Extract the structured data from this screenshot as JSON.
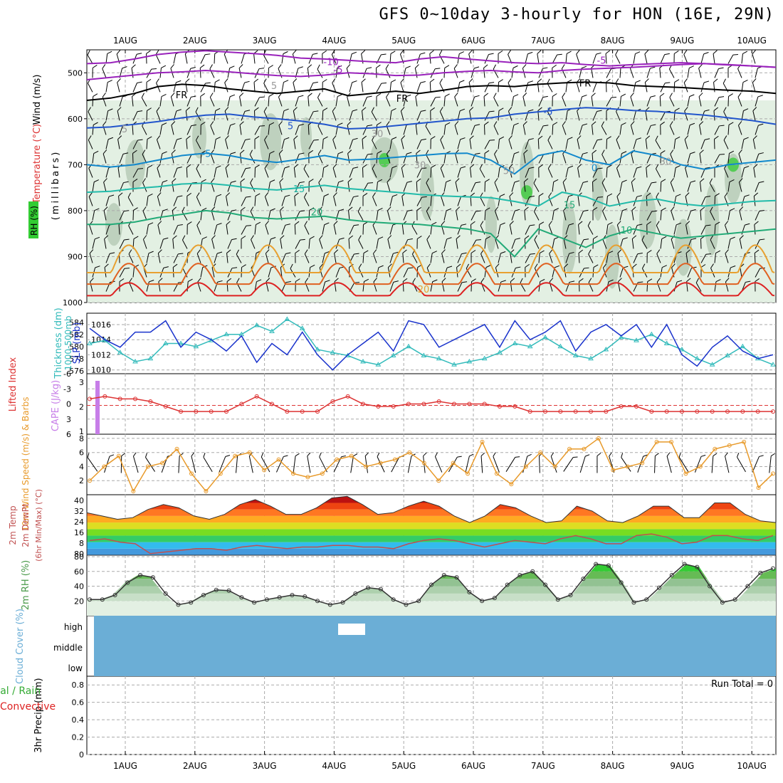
{
  "title": "GFS 0~10day 3-hourly for HON (16E, 29N)",
  "dates": [
    "1AUG",
    "2AUG",
    "3AUG",
    "4AUG",
    "5AUG",
    "6AUG",
    "7AUG",
    "8AUG",
    "9AUG",
    "10AUG"
  ],
  "colors": {
    "frame": "#000000",
    "grid": "#aaaaaa",
    "rh_light": "#e3f0e3",
    "rh_mid": "#b9cdb9",
    "rh_dark": "#7d9a7d",
    "rh_bright": "#55cc55",
    "slp": "#1a33cc",
    "thickness": "#33bbbb",
    "lifted": "#dd3333",
    "cape": "#c77ee8",
    "wind10": "#e89a2a",
    "rh2m": "#4a9a4a",
    "cloud": "#6baed6",
    "precip_total": "#33aa33",
    "precip_conv": "#dd2222",
    "dewpt": "#c05050"
  },
  "chart_data": [
    {
      "id": "upper_air",
      "type": "contour",
      "ylabel_wind": "Wind (m/s)",
      "ylabel_temp": "Temperature (°C)",
      "ylabel_rh": "RH (%)",
      "ylabel_mb": "(millibars)",
      "y_ticks": [
        500,
        600,
        700,
        800,
        900,
        1000
      ],
      "ylim": [
        450,
        1000
      ],
      "temp_labels": [
        "-10",
        "-5",
        "-5",
        "FR",
        "FR",
        "FR",
        "-5",
        "5",
        "-5",
        "0",
        "15",
        "20",
        "10",
        "15",
        "20",
        "5",
        "5",
        "30",
        "30",
        "50",
        "30"
      ],
      "isotherms": [
        {
          "value": "-10",
          "color": "#9922bb",
          "levels": [
            480,
            478,
            470,
            460,
            455,
            452,
            455,
            458,
            462,
            468,
            470,
            473,
            476,
            478,
            470,
            465,
            470,
            474,
            478,
            480,
            478,
            482,
            485,
            482,
            480,
            478,
            480,
            483,
            485,
            488
          ]
        },
        {
          "value": "-5",
          "color": "#9922bb",
          "levels": [
            515,
            510,
            505,
            500,
            498,
            495,
            498,
            502,
            506,
            508,
            505,
            500,
            502,
            506,
            505,
            500,
            497,
            495,
            498,
            500,
            495,
            492,
            490,
            488,
            485,
            482,
            480,
            482,
            485,
            488
          ]
        },
        {
          "value": "FR",
          "color": "#000000",
          "levels": [
            560,
            555,
            545,
            530,
            525,
            528,
            535,
            540,
            545,
            540,
            535,
            550,
            545,
            540,
            545,
            538,
            530,
            528,
            530,
            525,
            522,
            520,
            522,
            528,
            530,
            532,
            535,
            538,
            540,
            545
          ]
        },
        {
          "value": "-5b",
          "color": "#2255cc",
          "levels": [
            620,
            618,
            612,
            606,
            598,
            592,
            590,
            596,
            600,
            605,
            612,
            622,
            620,
            615,
            610,
            605,
            600,
            598,
            590,
            585,
            580,
            576,
            578,
            582,
            584,
            588,
            592,
            598,
            604,
            612
          ]
        },
        {
          "value": "0",
          "color": "#1188cc",
          "levels": [
            700,
            705,
            700,
            690,
            680,
            675,
            680,
            690,
            695,
            688,
            680,
            690,
            688,
            684,
            680,
            676,
            675,
            690,
            720,
            680,
            670,
            690,
            700,
            670,
            680,
            700,
            710,
            700,
            695,
            690
          ]
        },
        {
          "value": "15",
          "color": "#22bbaa",
          "levels": [
            760,
            758,
            752,
            748,
            742,
            740,
            745,
            752,
            755,
            750,
            745,
            752,
            756,
            760,
            765,
            768,
            770,
            772,
            780,
            790,
            760,
            770,
            790,
            780,
            775,
            785,
            790,
            785,
            780,
            778
          ]
        },
        {
          "value": "20",
          "color": "#22aa77",
          "levels": [
            830,
            830,
            825,
            815,
            808,
            800,
            805,
            815,
            818,
            815,
            812,
            820,
            825,
            828,
            830,
            835,
            840,
            850,
            900,
            840,
            860,
            880,
            855,
            840,
            850,
            860,
            855,
            850,
            845,
            840
          ]
        }
      ]
    },
    {
      "id": "slp_thickness",
      "type": "line",
      "ylabel_left": "Thickness (dm)",
      "ylabel_left2": "1000-500mb",
      "ylabel_right": "SLP (mb)",
      "thickness_ticks": [
        "584",
        "582",
        "580",
        "578",
        "576"
      ],
      "slp_ticks": [
        "1016",
        "1014",
        "1012",
        "1010"
      ],
      "series": [
        {
          "name": "SLP",
          "values": [
            1015.5,
            1014,
            1013,
            1015,
            1015,
            1016.5,
            1013,
            1015,
            1014,
            1012.5,
            1014.5,
            1011,
            1013.5,
            1012,
            1015,
            1012,
            1010,
            1012,
            1013.5,
            1015,
            1012.5,
            1016.5,
            1016,
            1013,
            1014,
            1015,
            1016,
            1013,
            1016.5,
            1014,
            1015,
            1016.5,
            1012.5,
            1015,
            1016,
            1014.5,
            1016,
            1013,
            1016,
            1012,
            1010.5,
            1013,
            1014.5,
            1012.5,
            1011.5,
            1012
          ]
        },
        {
          "name": "Thickness",
          "values": [
            580.5,
            581,
            579,
            577.5,
            578,
            580.5,
            580.5,
            580,
            581,
            582,
            582,
            583.5,
            582.5,
            584.5,
            583,
            579.5,
            579,
            578.5,
            577.5,
            577,
            578.5,
            580,
            578.5,
            578,
            577,
            577.5,
            578,
            579,
            580.5,
            580,
            581.5,
            580,
            578.5,
            578,
            579.5,
            581.5,
            581,
            582,
            580.5,
            579.5,
            578,
            577,
            578.5,
            580,
            578,
            577
          ]
        }
      ]
    },
    {
      "id": "lifted_cape",
      "type": "line",
      "ylabel_left": "Lifted Index",
      "ylabel_right": "CAPE (J/kg)",
      "li_ticks": [
        "-6",
        "-3",
        "0",
        "3",
        "6"
      ],
      "cape_ticks": [
        "3",
        "2",
        "1"
      ],
      "cape_bar_value": 3,
      "lifted_index": [
        3.5,
        3,
        3.5,
        3.5,
        4,
        5,
        6,
        6,
        6,
        6,
        4.5,
        3,
        4.5,
        6,
        6,
        6,
        4,
        3,
        4.5,
        5,
        5,
        4.5,
        4.5,
        4,
        4.5,
        4.5,
        4.5,
        5,
        5,
        6,
        6,
        6,
        6,
        6,
        6,
        5,
        5,
        6,
        6,
        6,
        6,
        6,
        6,
        6,
        6,
        6
      ]
    },
    {
      "id": "wind10m",
      "type": "line",
      "ylabel": "10m Wind Speed (m/s) & Barbs",
      "y_ticks": [
        "8",
        "6",
        "4",
        "2"
      ],
      "ylim": [
        0,
        8
      ],
      "values": [
        2,
        4,
        5.5,
        0.5,
        4,
        4.5,
        6.5,
        3,
        0.5,
        3,
        5.5,
        6,
        3.5,
        5,
        3,
        2.5,
        3,
        5,
        5.5,
        4,
        4.5,
        5,
        6,
        4.5,
        2,
        4.5,
        3,
        7.5,
        3,
        1.5,
        4,
        6,
        4,
        6.5,
        6.5,
        8,
        3.5,
        4,
        4.5,
        7.5,
        7.5,
        3,
        4,
        6.5,
        7,
        7.5,
        1,
        3
      ]
    },
    {
      "id": "temp2m",
      "type": "area",
      "ylabel": "2m Temp",
      "ylabel2": "2m DewPt",
      "ylabel3": "(6hr Min/Max) (°C)",
      "y_ticks": [
        "40",
        "32",
        "24",
        "16",
        "8",
        "80"
      ],
      "ylim": [
        0,
        40
      ],
      "temp": [
        30,
        28,
        26,
        27,
        32,
        35,
        33,
        28,
        26,
        29,
        35,
        38,
        34,
        29,
        29,
        33,
        39,
        40,
        35,
        29,
        30,
        34,
        37,
        34,
        28,
        24,
        28,
        35,
        33,
        28,
        24,
        25,
        34,
        31,
        25,
        24,
        28,
        34,
        34,
        27,
        27,
        36,
        36,
        29,
        25,
        24
      ],
      "dewpt": [
        13,
        14,
        12,
        11,
        5,
        6,
        7,
        8,
        8,
        7,
        9,
        10,
        9,
        8,
        9,
        9,
        10,
        10,
        9,
        9,
        8,
        11,
        13,
        14,
        13,
        11,
        9,
        11,
        13,
        12,
        11,
        14,
        16,
        14,
        11,
        11,
        16,
        17,
        15,
        11,
        12,
        16,
        16,
        14,
        13,
        16
      ]
    },
    {
      "id": "rh2m",
      "type": "area",
      "ylabel": "2m RH (%)",
      "y_ticks": [
        "80",
        "60",
        "40",
        "20"
      ],
      "ylim": [
        0,
        80
      ],
      "values": [
        22,
        22,
        28,
        45,
        55,
        52,
        30,
        15,
        18,
        28,
        35,
        34,
        25,
        18,
        22,
        25,
        28,
        26,
        20,
        15,
        18,
        30,
        38,
        36,
        22,
        15,
        20,
        42,
        55,
        52,
        32,
        20,
        24,
        42,
        55,
        60,
        42,
        22,
        28,
        50,
        70,
        68,
        45,
        18,
        22,
        38,
        55,
        70,
        66,
        40,
        18,
        22,
        40,
        58,
        64
      ]
    },
    {
      "id": "cloud",
      "type": "bar",
      "ylabel": "Cloud Cover (%)",
      "levels": [
        "high",
        "middle",
        "low"
      ]
    },
    {
      "id": "precip",
      "type": "bar",
      "ylabel": "3hr Precip (mm)",
      "ylabel2": "Total / Rain",
      "ylabel3": "Convective",
      "y_ticks": [
        "0.8",
        "0.6",
        "0.4",
        "0.2",
        "0"
      ],
      "ylim": [
        0,
        0.9
      ],
      "run_total_label": "Run Total = 0",
      "values": []
    }
  ]
}
